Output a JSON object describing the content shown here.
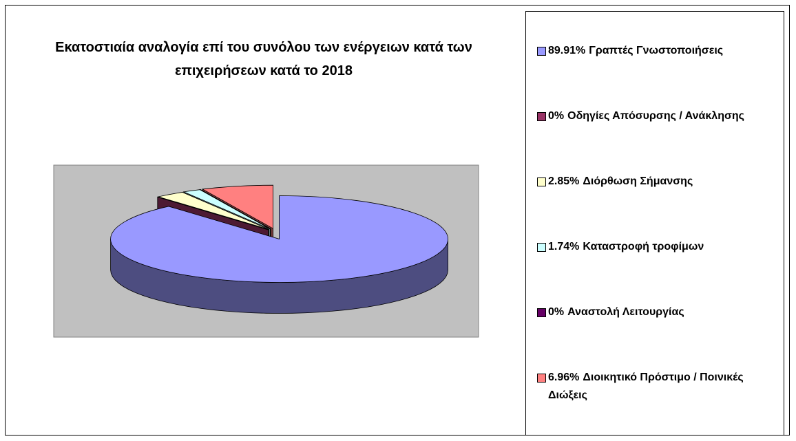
{
  "chart_data": {
    "type": "pie",
    "title": "Εκατοστιαία αναλογία επί του συνόλου των ενέργειων κατά των επιχειρήσεων κατά το 2018",
    "categories": [
      "Γραπτές Γνωστοποιήσεις",
      "Οδηγίες Απόσυρσης / Ανάκλησης",
      "Διόρθωση Σήμανσης",
      "Καταστροφή τροφίμων",
      "Αναστολή Λειτουργίας",
      "Διοικητικό Πρόστιμο / Ποινικές Διώξεις"
    ],
    "values": [
      89.91,
      0,
      2.85,
      1.74,
      0,
      6.96
    ],
    "value_labels": [
      "89.91%",
      "0%",
      "2.85%",
      "1.74%",
      "0%",
      "6.96%"
    ],
    "colors": [
      "#9999ff",
      "#993366",
      "#ffffcc",
      "#ccffff",
      "#660066",
      "#ff8080"
    ],
    "legend": "right"
  }
}
